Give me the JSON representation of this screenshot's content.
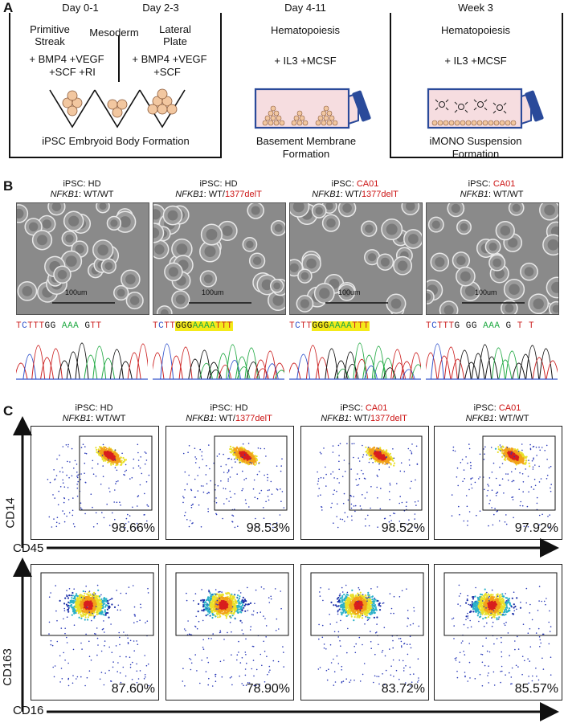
{
  "panelA": {
    "letter": "A",
    "day01": "Day 0-1",
    "day23": "Day 2-3",
    "day411": "Day 4-11",
    "week3": "Week 3",
    "primitive1": "Primitive",
    "primitive2": "Streak",
    "mesoderm": "Mesoderm",
    "lateral1": "Lateral",
    "lateral2": "Plate",
    "f1": "+ BMP4 +VEGF",
    "f2": "+SCF +RI",
    "f3": "+ BMP4 +VEGF",
    "f4": "+SCF",
    "hemato1": "Hematopoiesis",
    "hemato2": "Hematopoiesis",
    "il3a": "+ IL3 +MCSF",
    "il3b": "+ IL3 +MCSF",
    "title1": "iPSC Embryoid Body Formation",
    "title2a": "Basement Membrane",
    "title2b": "Formation",
    "title3a": "iMONO Suspension",
    "title3b": "Formation"
  },
  "panelB": {
    "letter": "B",
    "scalebar": "100um",
    "cols": [
      {
        "ipsc": "iPSC: ",
        "line": "HD",
        "nf": "NFKB1",
        "g1": ": WT/",
        "g2": "WT",
        "mut": false,
        "seq": [
          {
            "t": "T",
            "c": "#cc2222"
          },
          {
            "t": "C",
            "c": "#3355cc"
          },
          {
            "t": "T",
            "c": "#cc2222"
          },
          {
            "t": "T",
            "c": "#cc2222"
          },
          {
            "t": "T",
            "c": "#cc2222"
          },
          {
            "t": "G",
            "c": "#111111"
          },
          {
            "t": "G",
            "c": "#111111"
          },
          {
            "t": " ",
            "c": "#111111"
          },
          {
            "t": "A",
            "c": "#22aa44"
          },
          {
            "t": "A",
            "c": "#22aa44"
          },
          {
            "t": "A",
            "c": "#22aa44"
          },
          {
            "t": " ",
            "c": "#111111"
          },
          {
            "t": "G",
            "c": "#111111"
          },
          {
            "t": "T",
            "c": "#cc2222"
          },
          {
            "t": "T",
            "c": "#cc2222"
          }
        ]
      },
      {
        "ipsc": "iPSC: ",
        "line": "HD",
        "nf": "NFKB1",
        "g1": ": WT/",
        "g2": "1377delT",
        "mut": true,
        "seq": [
          {
            "t": "T",
            "c": "#cc2222"
          },
          {
            "t": "C",
            "c": "#3355cc"
          },
          {
            "t": "T",
            "c": "#cc2222"
          },
          {
            "t": "T",
            "c": "#cc2222"
          },
          {
            "t": "G",
            "c": "#111111"
          },
          {
            "t": "G",
            "c": "#111111"
          },
          {
            "t": "G",
            "c": "#111111"
          },
          {
            "t": "A",
            "c": "#22aa44"
          },
          {
            "t": "A",
            "c": "#22aa44"
          },
          {
            "t": "A",
            "c": "#22aa44"
          },
          {
            "t": "A",
            "c": "#22aa44"
          },
          {
            "t": "T",
            "c": "#cc2222"
          },
          {
            "t": "T",
            "c": "#cc2222"
          },
          {
            "t": "T",
            "c": "#cc2222"
          }
        ]
      },
      {
        "ipsc": "iPSC: ",
        "line": "CA01",
        "nf": "NFKB1",
        "g1": ": WT/",
        "g2": "1377delT",
        "mut": true,
        "seq": [
          {
            "t": "T",
            "c": "#cc2222"
          },
          {
            "t": "C",
            "c": "#3355cc"
          },
          {
            "t": "T",
            "c": "#cc2222"
          },
          {
            "t": "T",
            "c": "#cc2222"
          },
          {
            "t": "G",
            "c": "#111111"
          },
          {
            "t": "G",
            "c": "#111111"
          },
          {
            "t": "G",
            "c": "#111111"
          },
          {
            "t": "A",
            "c": "#22aa44"
          },
          {
            "t": "A",
            "c": "#22aa44"
          },
          {
            "t": "A",
            "c": "#22aa44"
          },
          {
            "t": "A",
            "c": "#22aa44"
          },
          {
            "t": "T",
            "c": "#cc2222"
          },
          {
            "t": "T",
            "c": "#cc2222"
          },
          {
            "t": "T",
            "c": "#cc2222"
          }
        ]
      },
      {
        "ipsc": "iPSC: ",
        "line": "CA01",
        "nf": "NFKB1",
        "g1": ": WT/",
        "g2": "WT",
        "mut": false,
        "seq": [
          {
            "t": "T",
            "c": "#cc2222"
          },
          {
            "t": "C",
            "c": "#3355cc"
          },
          {
            "t": "T",
            "c": "#cc2222"
          },
          {
            "t": "T",
            "c": "#cc2222"
          },
          {
            "t": "T",
            "c": "#cc2222"
          },
          {
            "t": "G",
            "c": "#111111"
          },
          {
            "t": " ",
            "c": "#111111"
          },
          {
            "t": "G",
            "c": "#111111"
          },
          {
            "t": "G",
            "c": "#111111"
          },
          {
            "t": " ",
            "c": "#111111"
          },
          {
            "t": "A",
            "c": "#22aa44"
          },
          {
            "t": "A",
            "c": "#22aa44"
          },
          {
            "t": "A",
            "c": "#22aa44"
          },
          {
            "t": " ",
            "c": "#111111"
          },
          {
            "t": "G",
            "c": "#111111"
          },
          {
            "t": " ",
            "c": "#111111"
          },
          {
            "t": "T",
            "c": "#cc2222"
          },
          {
            "t": " ",
            "c": "#111111"
          },
          {
            "t": "T",
            "c": "#cc2222"
          }
        ]
      }
    ]
  },
  "panelC": {
    "letter": "C",
    "headers": [
      {
        "ipsc": "iPSC: ",
        "line": "HD",
        "nf": "NFKB1",
        "g1": ": WT/",
        "g2": "WT",
        "mut": false
      },
      {
        "ipsc": "iPSC: ",
        "line": "HD",
        "nf": "NFKB1",
        "g1": ": WT/",
        "g2": "1377delT",
        "mut": true
      },
      {
        "ipsc": "iPSC: ",
        "line": "CA01",
        "nf": "NFKB1",
        "g1": ": WT/",
        "g2": "1377delT",
        "mut": true
      },
      {
        "ipsc": "iPSC: ",
        "line": "CA01",
        "nf": "NFKB1",
        "g1": ": WT/",
        "g2": "WT",
        "mut": false
      }
    ],
    "row1": {
      "ylabel": "CD14",
      "xlabel": "CD45",
      "pcts": [
        "98.66%",
        "98.53%",
        "98.52%",
        "97.92%"
      ]
    },
    "row2": {
      "ylabel": "CD163",
      "xlabel": "CD16",
      "pcts": [
        "87.60%",
        "78.90%",
        "83.72%",
        "85.57%"
      ]
    }
  },
  "colors": {
    "red": "#cc1414",
    "highlight": "#f4ea1a",
    "flask": "#2a4a9a"
  }
}
